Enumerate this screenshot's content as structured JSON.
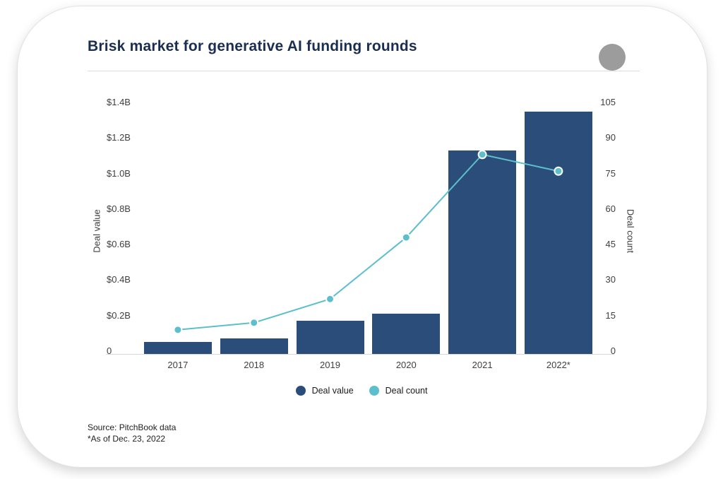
{
  "card": {
    "title": "Brisk market for generative AI funding rounds",
    "source_line1": "Source: PitchBook data",
    "source_line2": "*As of Dec. 23, 2022"
  },
  "colors": {
    "title": "#1a2e52",
    "bar": "#2a4d7a",
    "line": "#5cbfcb",
    "axis_text": "#3f3f3f",
    "divider": "#dcdcdc",
    "logo_circle": "#9c9c9c"
  },
  "chart_data": {
    "type": "bar",
    "subtype": "combo bar+line, dual axis",
    "title": "Brisk market for generative AI funding rounds",
    "categories": [
      "2017",
      "2018",
      "2019",
      "2020",
      "2021",
      "2022*"
    ],
    "series": [
      {
        "name": "Deal value",
        "type": "bar",
        "axis": "left",
        "unit": "$B",
        "values": [
          0.05,
          0.07,
          0.17,
          0.21,
          1.13,
          1.35
        ],
        "color": "#2a4d7a"
      },
      {
        "name": "Deal count",
        "type": "line",
        "axis": "right",
        "unit": "deals",
        "values": [
          9,
          12,
          22,
          48,
          83,
          76
        ],
        "color": "#5cbfcb"
      }
    ],
    "left_axis": {
      "label": "Deal value",
      "min": 0,
      "max": 1.4,
      "tick_values": [
        1.4,
        1.2,
        1.0,
        0.8,
        0.6,
        0.4,
        0.2,
        0
      ],
      "tick_labels": [
        "$1.4B",
        "$1.2B",
        "$1.0B",
        "$0.8B",
        "$0.6B",
        "$0.4B",
        "$0.2B",
        "0"
      ]
    },
    "right_axis": {
      "label": "Deal count",
      "min": 0,
      "max": 105,
      "tick_values": [
        105,
        90,
        75,
        60,
        45,
        30,
        15,
        0
      ],
      "tick_labels": [
        "105",
        "90",
        "75",
        "60",
        "45",
        "30",
        "15",
        "0"
      ]
    },
    "legend": [
      {
        "label": "Deal value",
        "color": "#2a4d7a"
      },
      {
        "label": "Deal count",
        "color": "#5cbfcb"
      }
    ],
    "grid": false,
    "legend_position": "bottom-center"
  }
}
